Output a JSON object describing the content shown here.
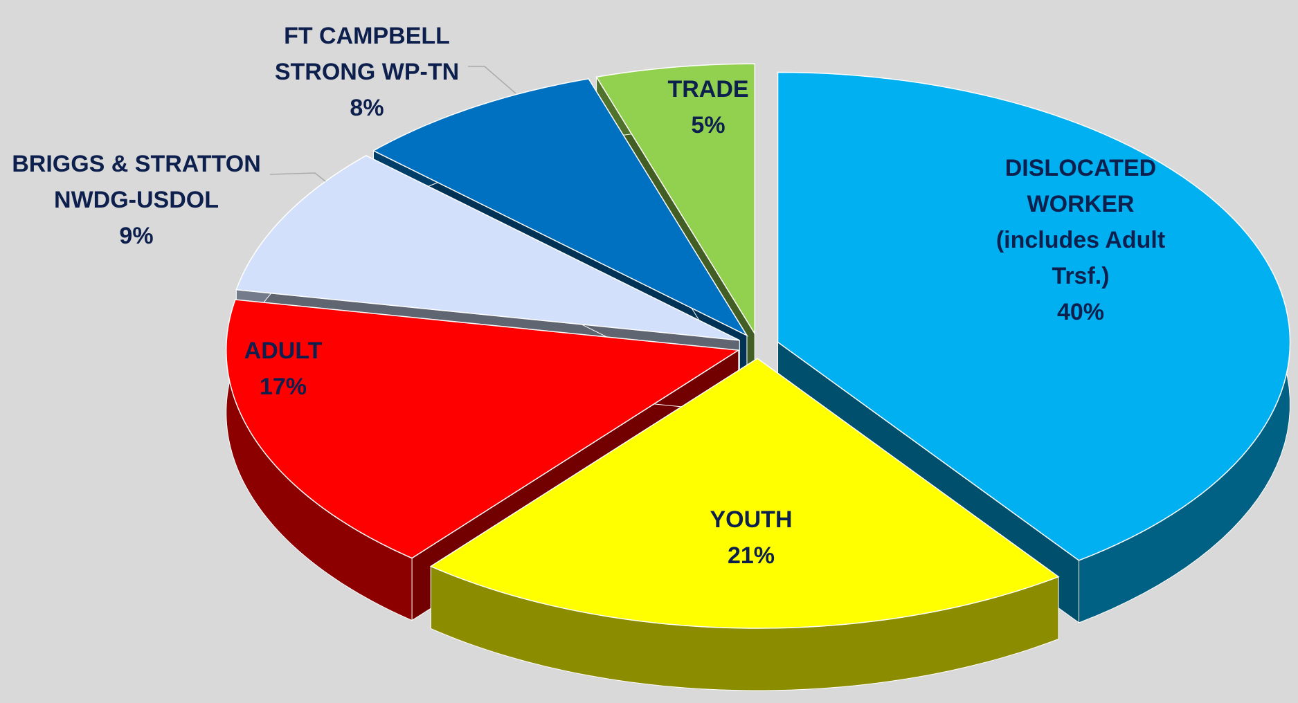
{
  "chart_data": {
    "type": "pie",
    "categories": [
      "DISLOCATED WORKER\n(includes Adult Trsf.)",
      "YOUTH",
      "ADULT",
      "BRIGGS & STRATTON\nNWDG-USDOL",
      "FT CAMPBELL\nSTRONG WP-TN",
      "TRADE"
    ],
    "values": [
      40,
      21,
      17,
      9,
      8,
      5
    ],
    "value_labels": [
      "40%",
      "21%",
      "17%",
      "9%",
      "8%",
      "5%"
    ],
    "colors": [
      "#00b0f0",
      "#ffff00",
      "#ff0000",
      "#d3e0fb",
      "#0070c0",
      "#92d050"
    ]
  }
}
